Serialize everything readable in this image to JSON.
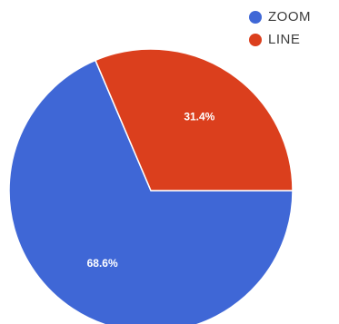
{
  "chart_data": {
    "type": "pie",
    "categories": [
      "ZOOM",
      "LINE"
    ],
    "values": [
      68.6,
      31.4
    ],
    "labels": [
      "68.6%",
      "31.4%"
    ],
    "colors": [
      "#3f67d6",
      "#db3f1d"
    ],
    "legend_position": "top-right"
  },
  "legend": {
    "items": [
      {
        "label": "ZOOM",
        "color": "#3f67d6"
      },
      {
        "label": "LINE",
        "color": "#db3f1d"
      }
    ]
  }
}
